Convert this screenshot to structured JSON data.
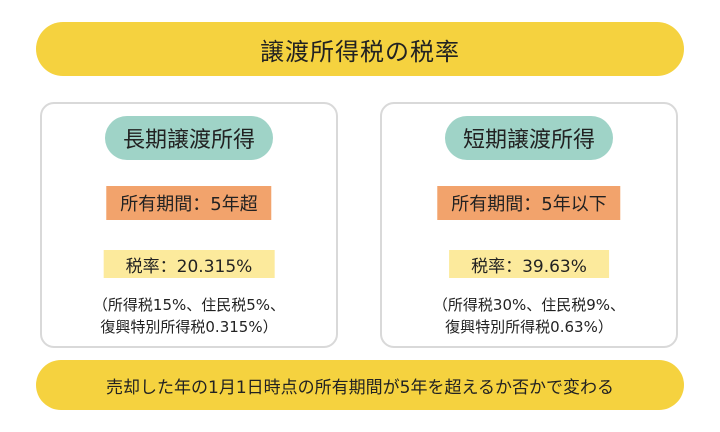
{
  "title": "譲渡所得税の税率",
  "long_term": {
    "heading": "長期譲渡所得",
    "period": "所有期間：5年超",
    "rate": "税率：20.315%",
    "note_line1": "（所得税15%、住民税5%、",
    "note_line2": "復興特別所得税0.315%）"
  },
  "short_term": {
    "heading": "短期譲渡所得",
    "period": "所有期間：5年以下",
    "rate": "税率：39.63%",
    "note_line1": "（所得税30%、住民税9%、",
    "note_line2": "復興特別所得税0.63%）"
  },
  "footer": "売却した年の1月1日時点の所有期間が5年を超えるか否かで変わる",
  "colors": {
    "banner": "#f5d23f",
    "heading_pill": "#9fd3c7",
    "period_box": "#f2a36c",
    "rate_box": "#fcea9c"
  }
}
